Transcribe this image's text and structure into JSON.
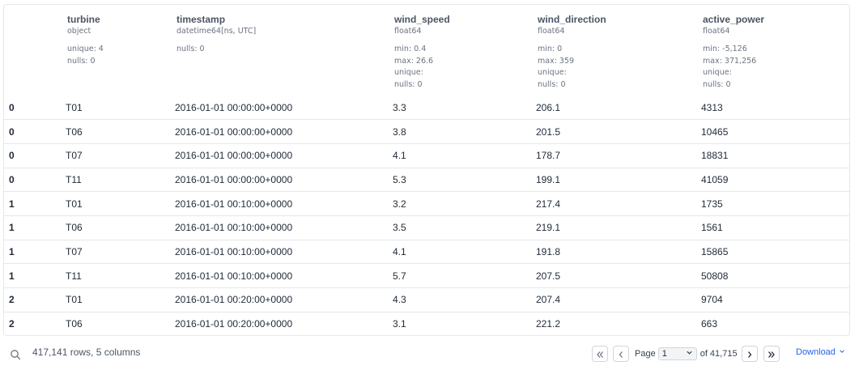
{
  "columns": [
    {
      "name": "",
      "dtype": "",
      "stats": []
    },
    {
      "name": "turbine",
      "dtype": "object",
      "stats": [
        "unique: 4",
        "nulls: 0"
      ]
    },
    {
      "name": "timestamp",
      "dtype": "datetime64[ns, UTC]",
      "stats": [
        "nulls: 0"
      ]
    },
    {
      "name": "wind_speed",
      "dtype": "float64",
      "stats": [
        "min: 0.4",
        "max: 26.6",
        "unique:",
        "nulls: 0"
      ]
    },
    {
      "name": "wind_direction",
      "dtype": "float64",
      "stats": [
        "min: 0",
        "max: 359",
        "unique:",
        "nulls: 0"
      ]
    },
    {
      "name": "active_power",
      "dtype": "float64",
      "stats": [
        "min: -5,126",
        "max: 371,256",
        "unique:",
        "nulls: 0"
      ]
    }
  ],
  "rows": [
    [
      "0",
      "T01",
      "2016-01-01 00:00:00+0000",
      "3.3",
      "206.1",
      "4313"
    ],
    [
      "0",
      "T06",
      "2016-01-01 00:00:00+0000",
      "3.8",
      "201.5",
      "10465"
    ],
    [
      "0",
      "T07",
      "2016-01-01 00:00:00+0000",
      "4.1",
      "178.7",
      "18831"
    ],
    [
      "0",
      "T11",
      "2016-01-01 00:00:00+0000",
      "5.3",
      "199.1",
      "41059"
    ],
    [
      "1",
      "T01",
      "2016-01-01 00:10:00+0000",
      "3.2",
      "217.4",
      "1735"
    ],
    [
      "1",
      "T06",
      "2016-01-01 00:10:00+0000",
      "3.5",
      "219.1",
      "1561"
    ],
    [
      "1",
      "T07",
      "2016-01-01 00:10:00+0000",
      "4.1",
      "191.8",
      "15865"
    ],
    [
      "1",
      "T11",
      "2016-01-01 00:10:00+0000",
      "5.7",
      "207.5",
      "50808"
    ],
    [
      "2",
      "T01",
      "2016-01-01 00:20:00+0000",
      "4.3",
      "207.4",
      "9704"
    ],
    [
      "2",
      "T06",
      "2016-01-01 00:20:00+0000",
      "3.1",
      "221.2",
      "663"
    ]
  ],
  "footer": {
    "row_count": "417,141 rows, 5 columns",
    "page_label": "Page",
    "page_value": "1",
    "page_total": "of 41,715",
    "download_label": "Download"
  },
  "icons": {
    "search": "search-icon",
    "first": "double-chevron-left-icon",
    "prev": "chevron-left-icon",
    "next": "chevron-right-icon",
    "last": "double-chevron-right-icon",
    "dropdown": "chevron-down-icon"
  },
  "colors": {
    "accent": "#2563eb",
    "border": "#e5e7eb",
    "muted": "#6b7280"
  }
}
